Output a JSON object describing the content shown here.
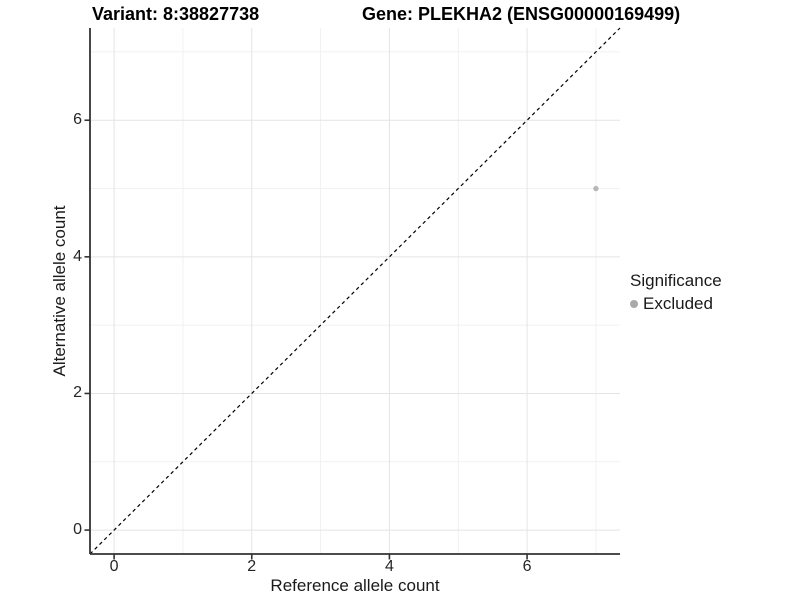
{
  "chart_data": {
    "type": "scatter",
    "title_left": "Variant: 8:38827738",
    "title_right": "Gene: PLEKHA2 (ENSG00000169499)",
    "xlabel": "Reference allele count",
    "ylabel": "Alternative allele count",
    "xlim": [
      -0.35,
      7.35
    ],
    "ylim": [
      -0.35,
      7.35
    ],
    "x_major_ticks": [
      0,
      2,
      4,
      6
    ],
    "y_major_ticks": [
      0,
      2,
      4,
      6
    ],
    "x_minor_gridlines": [
      1,
      3,
      5,
      7
    ],
    "y_minor_gridlines": [
      1,
      3,
      5,
      7
    ],
    "grid": true,
    "grid_major_color": "#e4e4e4",
    "grid_minor_color": "#f1f1f1",
    "axis_color": "#333333",
    "reference_line": {
      "style": "dashed",
      "color": "#000000",
      "from": [
        -0.35,
        -0.35
      ],
      "to": [
        7.35,
        7.35
      ]
    },
    "series": [
      {
        "name": "Excluded",
        "color": "#b7b7b7",
        "points": [
          {
            "x": 7,
            "y": 5
          }
        ]
      }
    ],
    "legend": {
      "title": "Significance",
      "position": "right",
      "items": [
        {
          "label": "Excluded",
          "color": "#a9a9a9"
        }
      ]
    }
  }
}
